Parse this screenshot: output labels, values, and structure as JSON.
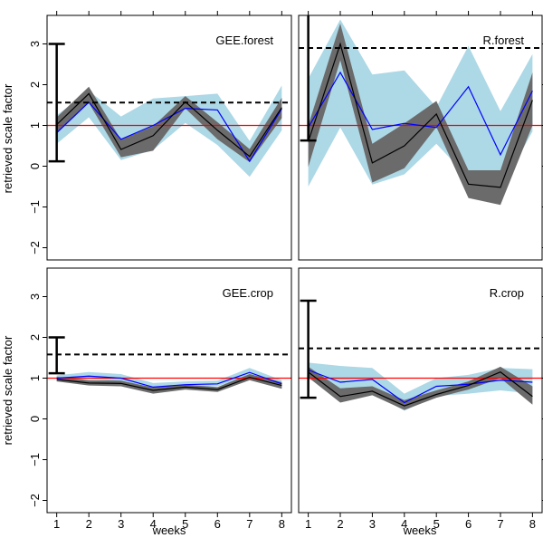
{
  "figure": {
    "ylabel": "retrieved scale factor",
    "xlabel": "weeks"
  },
  "chart_data": [
    {
      "type": "line",
      "title": "GEE.forest",
      "x": [
        1,
        2,
        3,
        4,
        5,
        6,
        7,
        8
      ],
      "xlim": [
        0.7,
        8.3
      ],
      "ylim": [
        -2.3,
        3.7
      ],
      "yticks": [
        -2,
        -1,
        0,
        1,
        2,
        3
      ],
      "yticklabels": [
        "−2",
        "−1",
        "0",
        "1",
        "2",
        "3"
      ],
      "reference_line": 1.0,
      "dashed_line": 1.56,
      "error_bar": {
        "x": 1,
        "low": 0.12,
        "high": 3.0
      },
      "series": [
        {
          "values": [
            1.02,
            1.78,
            0.41,
            0.75,
            1.58,
            0.88,
            0.24,
            1.44
          ],
          "lower": [
            0.8,
            1.55,
            0.22,
            0.38,
            1.42,
            0.66,
            0.1,
            1.18
          ],
          "upper": [
            1.2,
            1.95,
            0.65,
            0.98,
            1.72,
            1.08,
            0.42,
            1.68
          ]
        },
        {
          "values": [
            0.82,
            1.57,
            0.66,
            1.0,
            1.42,
            1.38,
            0.12,
            1.41
          ],
          "lower": [
            0.55,
            1.2,
            0.15,
            0.4,
            1.06,
            0.52,
            -0.26,
            0.88
          ],
          "upper": [
            1.25,
            1.85,
            1.22,
            1.66,
            1.72,
            1.78,
            0.62,
            1.98
          ]
        }
      ]
    },
    {
      "type": "line",
      "title": "R.forest",
      "x": [
        1,
        2,
        3,
        4,
        5,
        6,
        7,
        8
      ],
      "xlim": [
        0.7,
        8.3
      ],
      "ylim": [
        -2.3,
        3.7
      ],
      "yticks": [
        -2,
        -1,
        0,
        1,
        2,
        3
      ],
      "yticklabels": [],
      "reference_line": 1.0,
      "dashed_line": 2.9,
      "error_bar": {
        "x": 1,
        "low": 0.63,
        "high": 3.8
      },
      "series": [
        {
          "values": [
            0.6,
            3.0,
            0.08,
            0.5,
            1.28,
            -0.44,
            -0.52,
            1.62
          ],
          "lower": [
            -0.02,
            2.6,
            -0.4,
            -0.05,
            0.96,
            -0.78,
            -0.95,
            1.0
          ],
          "upper": [
            1.0,
            3.5,
            0.55,
            1.05,
            1.6,
            -0.1,
            -0.1,
            2.3
          ]
        },
        {
          "values": [
            0.95,
            2.3,
            0.9,
            1.05,
            0.95,
            1.95,
            0.28,
            1.85
          ],
          "lower": [
            -0.5,
            0.95,
            -0.45,
            -0.2,
            0.55,
            -0.28,
            -0.58,
            0.85
          ],
          "upper": [
            2.15,
            3.6,
            2.25,
            2.35,
            1.45,
            2.95,
            1.35,
            2.75
          ]
        }
      ]
    },
    {
      "type": "line",
      "title": "GEE.crop",
      "x": [
        1,
        2,
        3,
        4,
        5,
        6,
        7,
        8
      ],
      "xlim": [
        0.7,
        8.3
      ],
      "ylim": [
        -2.3,
        3.7
      ],
      "yticks": [
        -2,
        -1,
        0,
        1,
        2,
        3
      ],
      "yticklabels": [
        "−2",
        "−1",
        "0",
        "1",
        "2",
        "3"
      ],
      "reference_line": 1.0,
      "dashed_line": 1.58,
      "error_bar": {
        "x": 1,
        "low": 1.12,
        "high": 2.0
      },
      "series": [
        {
          "values": [
            0.97,
            0.88,
            0.87,
            0.7,
            0.78,
            0.72,
            1.02,
            0.82
          ],
          "lower": [
            0.92,
            0.82,
            0.8,
            0.62,
            0.72,
            0.66,
            0.95,
            0.74
          ],
          "upper": [
            1.03,
            0.95,
            0.94,
            0.77,
            0.84,
            0.78,
            1.1,
            0.9
          ]
        },
        {
          "values": [
            1.0,
            1.05,
            1.0,
            0.78,
            0.84,
            0.86,
            1.14,
            0.86
          ],
          "lower": [
            0.92,
            0.98,
            0.92,
            0.7,
            0.78,
            0.8,
            1.06,
            0.78
          ],
          "upper": [
            1.07,
            1.15,
            1.1,
            0.88,
            0.92,
            0.94,
            1.25,
            0.95
          ]
        }
      ]
    },
    {
      "type": "line",
      "title": "R.crop",
      "x": [
        1,
        2,
        3,
        4,
        5,
        6,
        7,
        8
      ],
      "xlim": [
        0.7,
        8.3
      ],
      "ylim": [
        -2.3,
        3.7
      ],
      "yticks": [
        -2,
        -1,
        0,
        1,
        2,
        3
      ],
      "yticklabels": [],
      "reference_line": 1.0,
      "dashed_line": 1.73,
      "error_bar": {
        "x": 1,
        "low": 0.52,
        "high": 2.9
      },
      "series": [
        {
          "values": [
            1.15,
            0.55,
            0.68,
            0.32,
            0.6,
            0.82,
            1.15,
            0.55
          ],
          "lower": [
            1.02,
            0.4,
            0.58,
            0.22,
            0.52,
            0.72,
            1.0,
            0.35
          ],
          "upper": [
            1.28,
            0.75,
            0.8,
            0.46,
            0.7,
            0.92,
            1.28,
            0.8
          ]
        },
        {
          "values": [
            1.2,
            0.9,
            0.97,
            0.4,
            0.8,
            0.85,
            0.95,
            0.9
          ],
          "lower": [
            0.98,
            0.66,
            0.64,
            0.2,
            0.56,
            0.62,
            0.7,
            0.62
          ],
          "upper": [
            1.38,
            1.3,
            1.25,
            0.62,
            1.0,
            1.08,
            1.25,
            1.22
          ]
        }
      ]
    }
  ],
  "x_tick_labels": [
    "1",
    "2",
    "3",
    "4",
    "5",
    "6",
    "7",
    "8"
  ],
  "colors": {
    "ribbon_light": "#add8e6",
    "ribbon_dark": "#6b6b6b",
    "line_blue": "#0000ff",
    "line_black": "#000000",
    "reference_red": "#ff0000"
  }
}
